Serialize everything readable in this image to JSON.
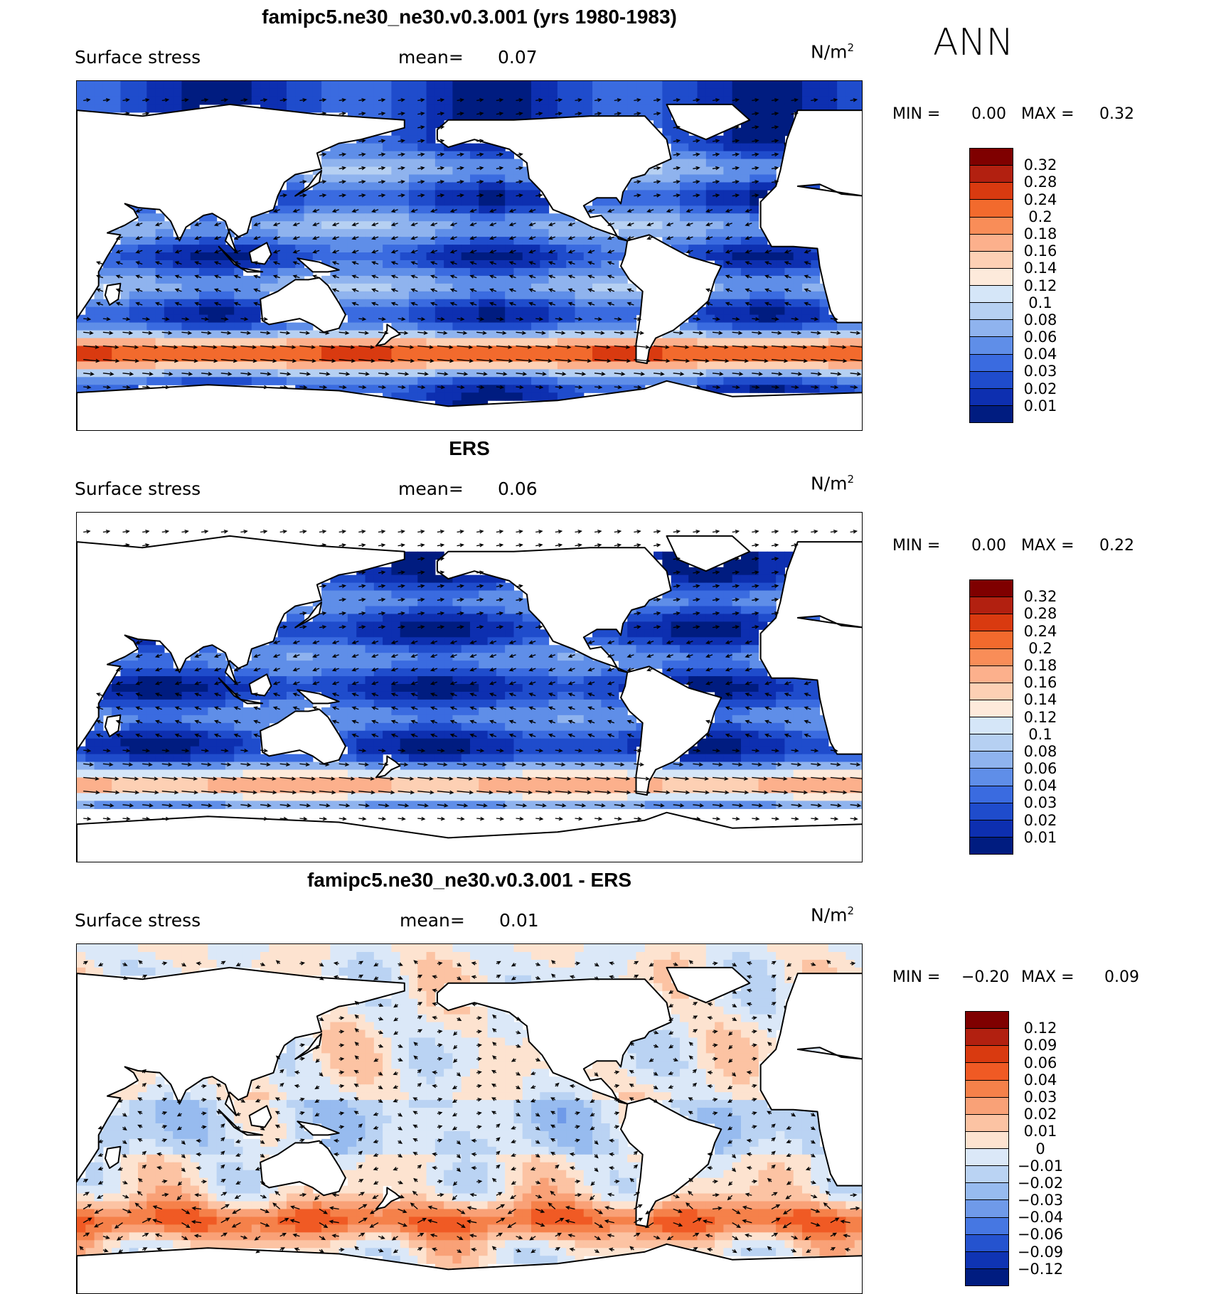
{
  "season": "ANN",
  "chart_data": [
    {
      "type": "heatmap",
      "title": "famipc5.ne30_ne30.v0.3.001 (yrs 1980-1983)",
      "variable": "Surface stress",
      "mean_label": "mean=",
      "mean_value": "0.07",
      "units_base": "N/m",
      "units_exp": "2",
      "min_label": "MIN =",
      "min_value": "0.00",
      "max_label": "MAX =",
      "max_value": "0.32",
      "levels": [
        "0.32",
        "0.28",
        "0.24",
        "0.2",
        "0.18",
        "0.16",
        "0.14",
        "0.12",
        "0.1",
        "0.08",
        "0.06",
        "0.04",
        "0.03",
        "0.02",
        "0.01"
      ],
      "colors": [
        "#7f0000",
        "#b22010",
        "#d93a10",
        "#f26a2d",
        "#f98d58",
        "#fcb08c",
        "#fdd0b4",
        "#fdeadb",
        "#d5e6f8",
        "#b6d0f2",
        "#8fb3ee",
        "#5f8ee8",
        "#3a6be0",
        "#1f4ccc",
        "#0d2fb0",
        "#001c80"
      ],
      "overlay": "wind stress vectors"
    },
    {
      "type": "heatmap",
      "title": "ERS",
      "variable": "Surface stress",
      "mean_label": "mean=",
      "mean_value": "0.06",
      "units_base": "N/m",
      "units_exp": "2",
      "min_label": "MIN =",
      "min_value": "0.00",
      "max_label": "MAX =",
      "max_value": "0.22",
      "levels": [
        "0.32",
        "0.28",
        "0.24",
        "0.2",
        "0.18",
        "0.16",
        "0.14",
        "0.12",
        "0.1",
        "0.08",
        "0.06",
        "0.04",
        "0.03",
        "0.02",
        "0.01"
      ],
      "colors": [
        "#7f0000",
        "#b22010",
        "#d93a10",
        "#f26a2d",
        "#f98d58",
        "#fcb08c",
        "#fdd0b4",
        "#fdeadb",
        "#d5e6f8",
        "#b6d0f2",
        "#8fb3ee",
        "#5f8ee8",
        "#3a6be0",
        "#1f4ccc",
        "#0d2fb0",
        "#001c80"
      ],
      "overlay": "wind stress vectors"
    },
    {
      "type": "heatmap",
      "title": "famipc5.ne30_ne30.v0.3.001 - ERS",
      "variable": "Surface stress",
      "mean_label": "mean=",
      "mean_value": "0.01",
      "units_base": "N/m",
      "units_exp": "2",
      "min_label": "MIN =",
      "min_value": "−0.20",
      "max_label": "MAX =",
      "max_value": "0.09",
      "levels": [
        "0.12",
        "0.09",
        "0.06",
        "0.04",
        "0.03",
        "0.02",
        "0.01",
        "0",
        "−0.01",
        "−0.02",
        "−0.03",
        "−0.04",
        "−0.06",
        "−0.09",
        "−0.12"
      ],
      "colors": [
        "#7f0000",
        "#b22010",
        "#d93a10",
        "#f05a24",
        "#f5814a",
        "#f9a177",
        "#fcc3a3",
        "#fde3d0",
        "#dbe8f8",
        "#bad3f3",
        "#97bbef",
        "#6f9ae9",
        "#4677e2",
        "#2553cf",
        "#0f34b3",
        "#001c80"
      ],
      "overlay": "wind stress difference vectors"
    }
  ]
}
